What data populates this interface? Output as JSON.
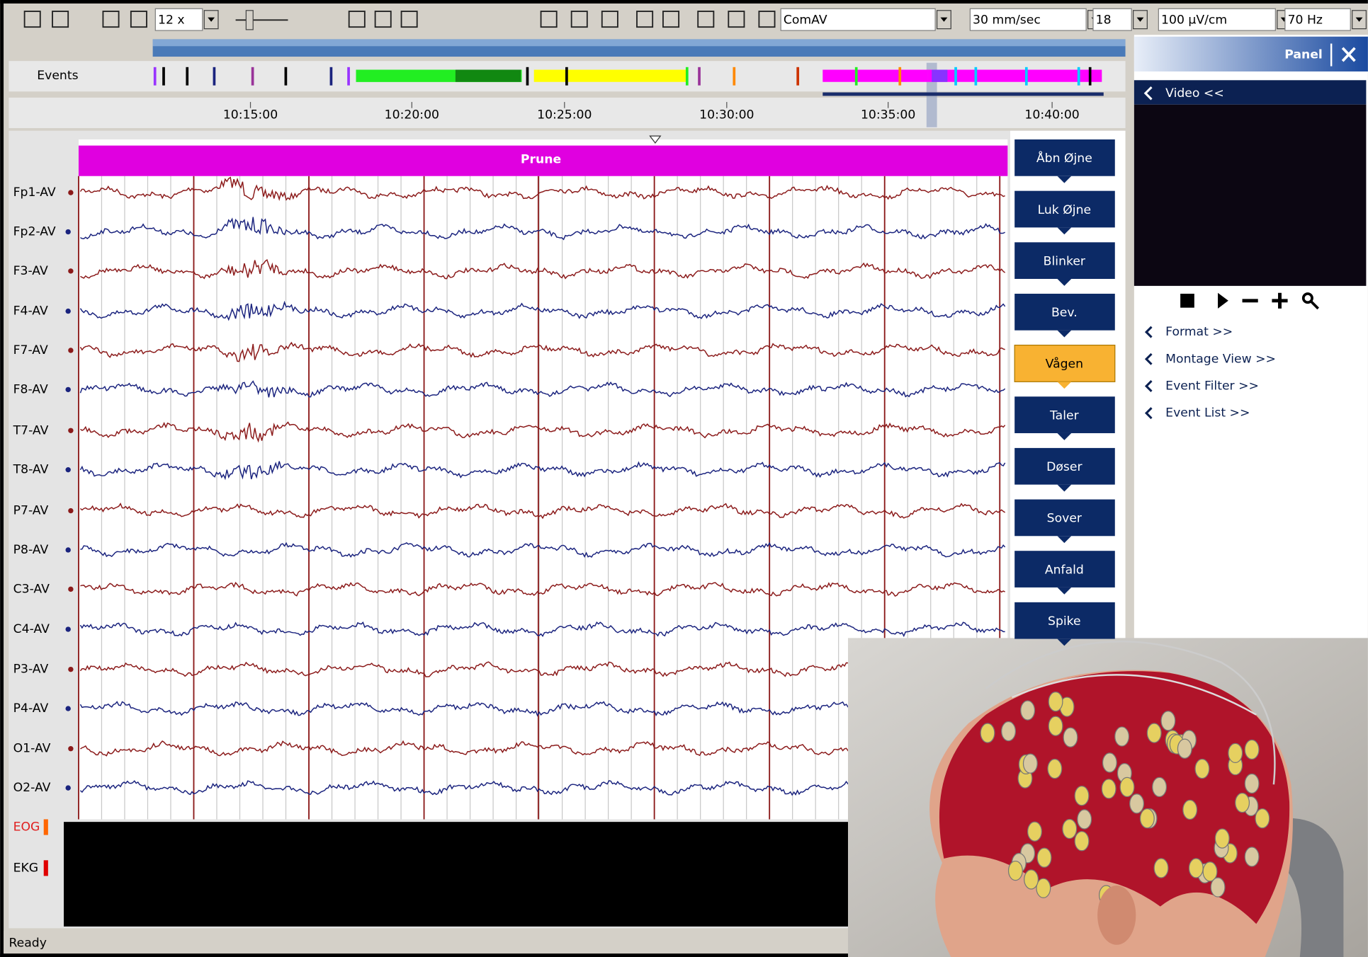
{
  "toolbar": {
    "zoom": "12 x",
    "montage": "ComAV",
    "speed": "30 mm/sec",
    "sensitivity_index": "18",
    "sensitivity": "100 µV/cm",
    "filter": "70 Hz"
  },
  "events_label": "Events",
  "timeline": [
    "10:15:00",
    "10:20:00",
    "10:25:00",
    "10:30:00",
    "10:35:00",
    "10:40:00"
  ],
  "overlay_label": "Prune",
  "channels": [
    "Fp1-AV",
    "Fp2-AV",
    "F3-AV",
    "F4-AV",
    "F7-AV",
    "F8-AV",
    "T7-AV",
    "T8-AV",
    "P7-AV",
    "P8-AV",
    "C3-AV",
    "C4-AV",
    "P3-AV",
    "P4-AV",
    "O1-AV",
    "O2-AV"
  ],
  "extra_channels": [
    "EOG",
    "EKG"
  ],
  "event_buttons": [
    "Åbn Øjne",
    "Luk Øjne",
    "Blinker",
    "Bev.",
    "Vågen",
    "Taler",
    "Døser",
    "Sover",
    "Anfald",
    "Spike"
  ],
  "panel": {
    "title": "Panel",
    "video": "Video <<",
    "links": [
      "Format >>",
      "Montage View >>",
      "Event Filter >>",
      "Event List >>"
    ]
  },
  "status": "Ready"
}
